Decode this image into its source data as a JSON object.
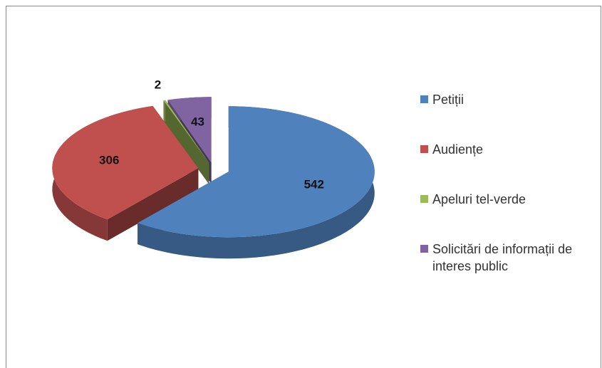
{
  "chart_data": {
    "type": "pie",
    "categories": [
      "Petiții",
      "Audiențe",
      "Apeluri tel-verde",
      "Solicitări de informații de interes public"
    ],
    "values": [
      542,
      306,
      2,
      43
    ],
    "colors": [
      "#4f81bd",
      "#c0504d",
      "#9bbb59",
      "#8064a2"
    ],
    "legend": "right"
  }
}
